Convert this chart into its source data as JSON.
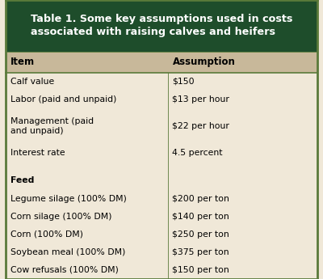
{
  "title": "Table 1. Some key assumptions used in costs\nassociated with raising calves and heifers",
  "title_bg": "#1e4d2b",
  "title_color": "#ffffff",
  "header_bg": "#c8b89a",
  "header_items": [
    "Item",
    "Assumption"
  ],
  "row_bg": "#f0e8d8",
  "border_color": "#5a7a3a",
  "rows": [
    [
      "Calf value",
      "$150"
    ],
    [
      "Labor (paid and unpaid)",
      "$13 per hour"
    ],
    [
      "Management (paid\nand unpaid)",
      "$22 per hour"
    ],
    [
      "Interest rate",
      "4.5 percent"
    ],
    [
      "",
      ""
    ],
    [
      "Feed",
      ""
    ],
    [
      "Legume silage (100% DM)",
      "$200 per ton"
    ],
    [
      "Corn silage (100% DM)",
      "$140 per ton"
    ],
    [
      "Corn (100% DM)",
      "$250 per ton"
    ],
    [
      "Soybean meal (100% DM)",
      "$375 per ton"
    ],
    [
      "Cow refusals (100% DM)",
      "$150 per ton"
    ]
  ],
  "feed_bold_row": 5,
  "col_split": 0.52
}
